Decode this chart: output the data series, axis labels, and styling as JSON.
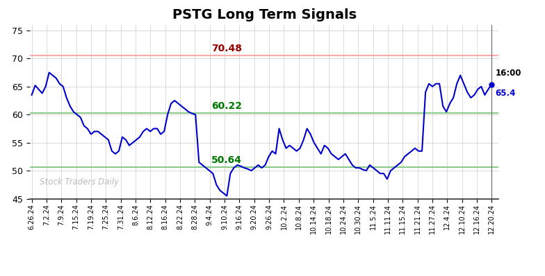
{
  "title": "PSTG Long Term Signals",
  "title_fontsize": 14,
  "title_fontweight": "bold",
  "background_color": "#ffffff",
  "line_color": "#0000cc",
  "line_width": 1.5,
  "ylim": [
    45,
    76
  ],
  "yticks": [
    45,
    50,
    55,
    60,
    65,
    70,
    75
  ],
  "hline_upper": 70.48,
  "hline_upper_color": "#ffaaaa",
  "hline_upper_label": "70.48",
  "hline_upper_label_color": "#990000",
  "hline_mid": 60.22,
  "hline_mid_color": "#88cc88",
  "hline_mid_label": "60.22",
  "hline_mid_label_color": "#007700",
  "hline_lower": 50.64,
  "hline_lower_color": "#88cc88",
  "hline_lower_label": "50.64",
  "hline_lower_label_color": "#007700",
  "watermark": "Stock Traders Daily",
  "watermark_color": "#bbbbbb",
  "last_label": "16:00",
  "last_value": "65.4",
  "last_value_color": "#0000cc",
  "xtick_labels": [
    "6.26.24",
    "7.2.24",
    "7.9.24",
    "7.15.24",
    "7.19.24",
    "7.25.24",
    "7.31.24",
    "8.6.24",
    "8.12.24",
    "8.16.24",
    "8.22.24",
    "8.28.24",
    "9.4.24",
    "9.10.24",
    "9.16.24",
    "9.20.24",
    "9.26.24",
    "10.2.24",
    "10.8.24",
    "10.14.24",
    "10.18.24",
    "10.24.24",
    "10.30.24",
    "11.5.24",
    "11.11.24",
    "11.15.24",
    "11.21.24",
    "11.27.24",
    "12.4.24",
    "12.10.24",
    "12.16.24",
    "12.20.24"
  ],
  "prices": [
    63.5,
    65.2,
    64.5,
    63.8,
    65.0,
    67.5,
    67.0,
    66.5,
    65.5,
    65.0,
    63.0,
    61.5,
    60.5,
    60.0,
    59.5,
    58.0,
    57.5,
    56.5,
    57.0,
    57.0,
    56.5,
    56.0,
    55.5,
    53.5,
    53.0,
    53.5,
    56.0,
    55.5,
    54.5,
    55.0,
    55.5,
    56.0,
    57.0,
    57.5,
    57.0,
    57.5,
    57.5,
    56.5,
    57.0,
    60.0,
    62.0,
    62.5,
    62.0,
    61.5,
    61.0,
    60.5,
    60.2,
    60.0,
    51.5,
    51.0,
    50.5,
    50.0,
    49.5,
    47.5,
    46.5,
    46.0,
    45.5,
    49.5,
    50.5,
    51.0,
    50.8,
    50.5,
    50.3,
    50.0,
    50.5,
    51.0,
    50.5,
    51.0,
    52.5,
    53.5,
    53.0,
    57.5,
    55.5,
    54.0,
    54.5,
    54.0,
    53.5,
    54.0,
    55.5,
    57.5,
    56.5,
    55.0,
    54.0,
    53.0,
    54.5,
    54.0,
    53.0,
    52.5,
    52.0,
    52.5,
    53.0,
    52.0,
    51.0,
    50.5,
    50.5,
    50.2,
    50.0,
    51.0,
    50.5,
    50.0,
    49.5,
    49.5,
    48.5,
    50.0,
    50.5,
    51.0,
    51.5,
    52.5,
    53.0,
    53.5,
    54.0,
    53.5,
    53.5,
    64.0,
    65.5,
    65.0,
    65.5,
    65.5,
    61.5,
    60.5,
    62.0,
    63.0,
    65.5,
    67.0,
    65.5,
    64.0,
    63.0,
    63.5,
    64.5,
    65.0,
    63.5,
    64.5,
    65.4
  ]
}
